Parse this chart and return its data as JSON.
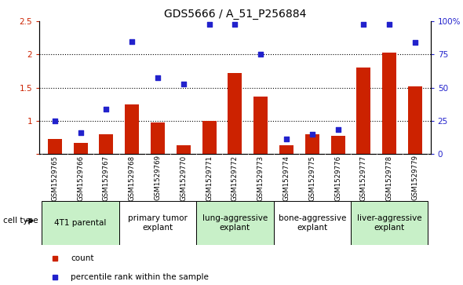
{
  "title": "GDS5666 / A_51_P256884",
  "samples": [
    "GSM1529765",
    "GSM1529766",
    "GSM1529767",
    "GSM1529768",
    "GSM1529769",
    "GSM1529770",
    "GSM1529771",
    "GSM1529772",
    "GSM1529773",
    "GSM1529774",
    "GSM1529775",
    "GSM1529776",
    "GSM1529777",
    "GSM1529778",
    "GSM1529779"
  ],
  "counts": [
    0.72,
    0.67,
    0.8,
    1.25,
    0.97,
    0.63,
    1.0,
    1.72,
    1.36,
    0.63,
    0.8,
    0.77,
    1.8,
    2.03,
    1.52
  ],
  "percentile_left_vals": [
    1.0,
    0.82,
    1.18,
    2.2,
    1.65,
    1.55,
    2.45,
    2.45,
    2.0,
    0.72,
    0.8,
    0.87,
    2.45,
    2.45,
    2.18
  ],
  "ylim_left": [
    0.5,
    2.5
  ],
  "ylim_right": [
    0,
    100
  ],
  "yticks_left": [
    0.5,
    1.0,
    1.5,
    2.0,
    2.5
  ],
  "yticks_right": [
    0,
    25,
    50,
    75,
    100
  ],
  "bar_color": "#cc2200",
  "dot_color": "#2222cc",
  "cell_type_groups": [
    {
      "label": "4T1 parental",
      "start": 0,
      "end": 2,
      "color": "#c8f0c8"
    },
    {
      "label": "primary tumor\nexplant",
      "start": 3,
      "end": 5,
      "color": "#ffffff"
    },
    {
      "label": "lung-aggressive\nexplant",
      "start": 6,
      "end": 8,
      "color": "#c8f0c8"
    },
    {
      "label": "bone-aggressive\nexplant",
      "start": 9,
      "end": 11,
      "color": "#ffffff"
    },
    {
      "label": "liver-aggressive\nexplant",
      "start": 12,
      "end": 14,
      "color": "#c8f0c8"
    }
  ],
  "legend_count_label": "count",
  "legend_pct_label": "percentile rank within the sample",
  "xlabel_cell_type": "cell type",
  "background_plot": "#ffffff",
  "xticklabel_bg": "#c8c8c8",
  "title_fontsize": 10,
  "tick_fontsize": 7.5,
  "group_label_fontsize": 7.5
}
